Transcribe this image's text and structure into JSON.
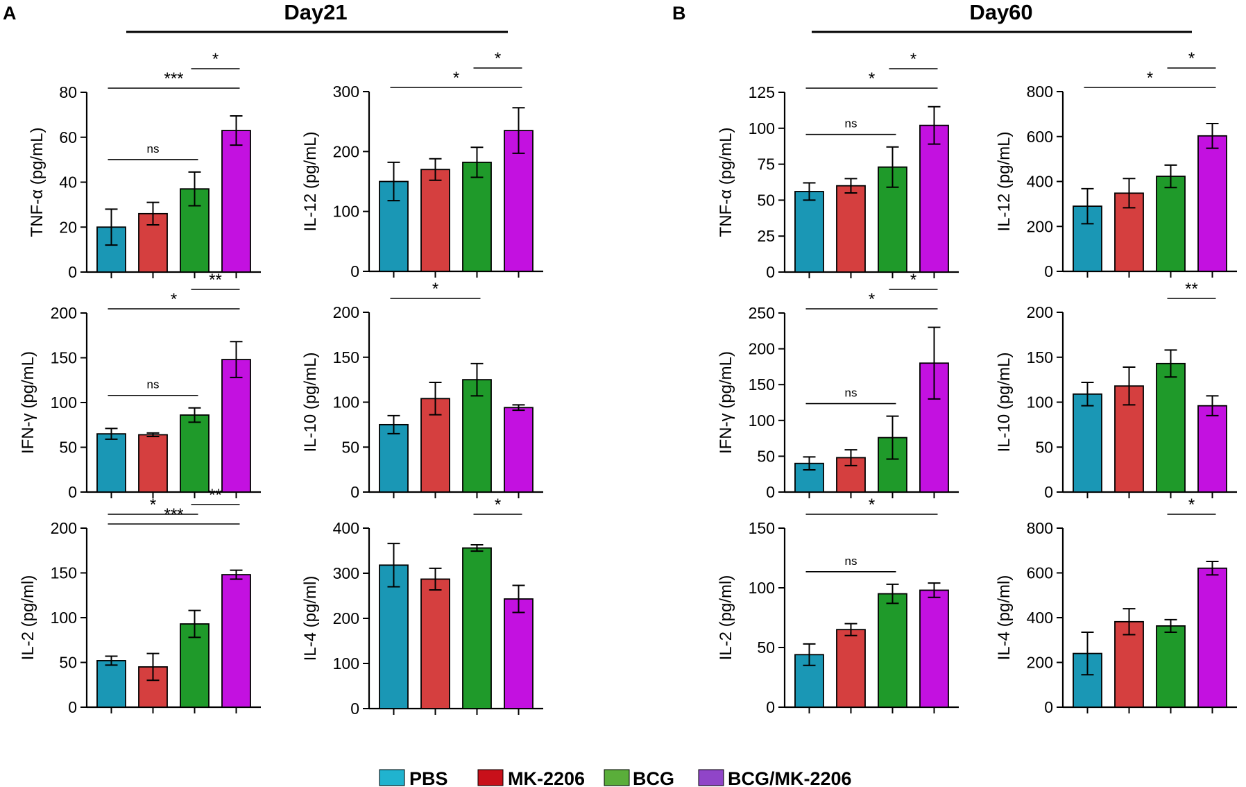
{
  "panels": [
    {
      "letter": "A",
      "day": "Day21"
    },
    {
      "letter": "B",
      "day": "Day60"
    }
  ],
  "legend": [
    {
      "label": "PBS",
      "color": "#1A97B5",
      "swatch": "#20B3CF"
    },
    {
      "label": "MK-2206",
      "color": "#D53F3F",
      "swatch": "#C8101A"
    },
    {
      "label": "BCG",
      "color": "#1F9A2A",
      "swatch": "#5AAE3A"
    },
    {
      "label": "BCG/MK-2206",
      "color": "#C311E0",
      "swatch": "#9045C8"
    }
  ],
  "chart_data": [
    {
      "id": "d21-tnf",
      "type": "bar",
      "panel": "A",
      "ylabel": "TNF-α (pg/mL)",
      "categories": [
        "PBS",
        "MK-2206",
        "BCG",
        "BCG/MK-2206"
      ],
      "values": [
        20,
        26,
        37,
        63
      ],
      "errors": [
        8,
        5,
        7.5,
        6.5
      ],
      "ylim": [
        0,
        80
      ],
      "ticks": [
        0,
        20,
        40,
        60,
        80
      ],
      "brackets": [
        {
          "from": 0,
          "to": 3,
          "label": "***"
        },
        {
          "from": 2,
          "to": 3,
          "label": "*"
        },
        {
          "from": 0,
          "to": 2,
          "label": "ns"
        }
      ]
    },
    {
      "id": "d21-il12",
      "type": "bar",
      "panel": "A",
      "ylabel": "IL-12 (pg/mL)",
      "categories": [
        "PBS",
        "MK-2206",
        "BCG",
        "BCG/MK-2206"
      ],
      "values": [
        150,
        170,
        182,
        235
      ],
      "errors": [
        32,
        18,
        25,
        38
      ],
      "ylim": [
        0,
        300
      ],
      "ticks": [
        0,
        100,
        200,
        300
      ],
      "brackets": [
        {
          "from": 0,
          "to": 3,
          "label": "*"
        },
        {
          "from": 2,
          "to": 3,
          "label": "*"
        }
      ]
    },
    {
      "id": "d21-ifng",
      "type": "bar",
      "panel": "A",
      "ylabel": "IFN-γ (pg/mL)",
      "categories": [
        "PBS",
        "MK-2206",
        "BCG",
        "BCG/MK-2206"
      ],
      "values": [
        65,
        64,
        86,
        148
      ],
      "errors": [
        6,
        2,
        8,
        20
      ],
      "ylim": [
        0,
        200
      ],
      "ticks": [
        0,
        50,
        100,
        150,
        200
      ],
      "brackets": [
        {
          "from": 0,
          "to": 3,
          "label": "*"
        },
        {
          "from": 2,
          "to": 3,
          "label": "**"
        },
        {
          "from": 0,
          "to": 2,
          "label": "ns"
        }
      ]
    },
    {
      "id": "d21-il10",
      "type": "bar",
      "panel": "A",
      "ylabel": "IL-10 (pg/mL)",
      "categories": [
        "PBS",
        "MK-2206",
        "BCG",
        "BCG/MK-2206"
      ],
      "values": [
        75,
        104,
        125,
        94
      ],
      "errors": [
        10,
        18,
        18,
        3
      ],
      "ylim": [
        0,
        200
      ],
      "ticks": [
        0,
        50,
        100,
        150,
        200
      ],
      "brackets": [
        {
          "from": 0,
          "to": 2,
          "label": "*"
        }
      ]
    },
    {
      "id": "d21-il2",
      "type": "bar",
      "panel": "A",
      "ylabel": "IL-2 (pg/ml)",
      "categories": [
        "PBS",
        "MK-2206",
        "BCG",
        "BCG/MK-2206"
      ],
      "values": [
        52,
        45,
        93,
        148
      ],
      "errors": [
        5,
        15,
        15,
        5
      ],
      "ylim": [
        0,
        200
      ],
      "ticks": [
        0,
        50,
        100,
        150,
        200
      ],
      "brackets": [
        {
          "from": 0,
          "to": 3,
          "label": "***"
        },
        {
          "from": 2,
          "to": 3,
          "label": "**"
        },
        {
          "from": 0,
          "to": 2,
          "label": "*"
        }
      ]
    },
    {
      "id": "d21-il4",
      "type": "bar",
      "panel": "A",
      "ylabel": "IL-4 (pg/ml)",
      "categories": [
        "PBS",
        "MK-2206",
        "BCG",
        "BCG/MK-2206"
      ],
      "values": [
        318,
        287,
        356,
        243
      ],
      "errors": [
        48,
        24,
        7,
        30
      ],
      "ylim": [
        0,
        400
      ],
      "ticks": [
        0,
        100,
        200,
        300,
        400
      ],
      "brackets": [
        {
          "from": 2,
          "to": 3,
          "label": "*"
        }
      ]
    },
    {
      "id": "d60-tnf",
      "type": "bar",
      "panel": "B",
      "ylabel": "TNF-α (pg/mL)",
      "categories": [
        "PBS",
        "MK-2206",
        "BCG",
        "BCG/MK-2206"
      ],
      "values": [
        56,
        60,
        73,
        102
      ],
      "errors": [
        6,
        5,
        14,
        13
      ],
      "ylim": [
        0,
        125
      ],
      "ticks": [
        0,
        25,
        50,
        75,
        100,
        125
      ],
      "brackets": [
        {
          "from": 0,
          "to": 3,
          "label": "*"
        },
        {
          "from": 2,
          "to": 3,
          "label": "*"
        },
        {
          "from": 0,
          "to": 2,
          "label": "ns"
        }
      ]
    },
    {
      "id": "d60-il12",
      "type": "bar",
      "panel": "B",
      "ylabel": "IL-12 (pg/mL)",
      "categories": [
        "PBS",
        "MK-2206",
        "BCG",
        "BCG/MK-2206"
      ],
      "values": [
        290,
        348,
        423,
        603
      ],
      "errors": [
        78,
        65,
        50,
        55
      ],
      "ylim": [
        0,
        800
      ],
      "ticks": [
        0,
        200,
        400,
        600,
        800
      ],
      "brackets": [
        {
          "from": 0,
          "to": 3,
          "label": "*"
        },
        {
          "from": 2,
          "to": 3,
          "label": "*"
        }
      ]
    },
    {
      "id": "d60-ifng",
      "type": "bar",
      "panel": "B",
      "ylabel": "IFN-γ (pg/mL)",
      "categories": [
        "PBS",
        "MK-2206",
        "BCG",
        "BCG/MK-2206"
      ],
      "values": [
        40,
        48,
        76,
        180
      ],
      "errors": [
        9,
        11,
        30,
        50
      ],
      "ylim": [
        0,
        250
      ],
      "ticks": [
        0,
        50,
        100,
        150,
        200,
        250
      ],
      "brackets": [
        {
          "from": 0,
          "to": 3,
          "label": "*"
        },
        {
          "from": 2,
          "to": 3,
          "label": "*"
        },
        {
          "from": 0,
          "to": 2,
          "label": "ns"
        }
      ]
    },
    {
      "id": "d60-il10",
      "type": "bar",
      "panel": "B",
      "ylabel": "IL-10 (pg/mL)",
      "categories": [
        "PBS",
        "MK-2206",
        "BCG",
        "BCG/MK-2206"
      ],
      "values": [
        109,
        118,
        143,
        96
      ],
      "errors": [
        13,
        21,
        15,
        11
      ],
      "ylim": [
        0,
        200
      ],
      "ticks": [
        0,
        50,
        100,
        150,
        200
      ],
      "brackets": [
        {
          "from": 2,
          "to": 3,
          "label": "**"
        }
      ]
    },
    {
      "id": "d60-il2",
      "type": "bar",
      "panel": "B",
      "ylabel": "IL-2 (pg/ml)",
      "categories": [
        "PBS",
        "MK-2206",
        "BCG",
        "BCG/MK-2206"
      ],
      "values": [
        44,
        65,
        95,
        98
      ],
      "errors": [
        9,
        5,
        8,
        6
      ],
      "ylim": [
        0,
        150
      ],
      "ticks": [
        0,
        50,
        100,
        150
      ],
      "brackets": [
        {
          "from": 0,
          "to": 3,
          "label": "*"
        },
        {
          "from": 0,
          "to": 2,
          "label": "ns"
        }
      ]
    },
    {
      "id": "d60-il4",
      "type": "bar",
      "panel": "B",
      "ylabel": "IL-4 (pg/ml)",
      "categories": [
        "PBS",
        "MK-2206",
        "BCG",
        "BCG/MK-2206"
      ],
      "values": [
        240,
        382,
        363,
        621
      ],
      "errors": [
        95,
        58,
        28,
        30
      ],
      "ylim": [
        0,
        800
      ],
      "ticks": [
        0,
        200,
        400,
        600,
        800
      ],
      "brackets": [
        {
          "from": 2,
          "to": 3,
          "label": "*"
        }
      ]
    }
  ]
}
